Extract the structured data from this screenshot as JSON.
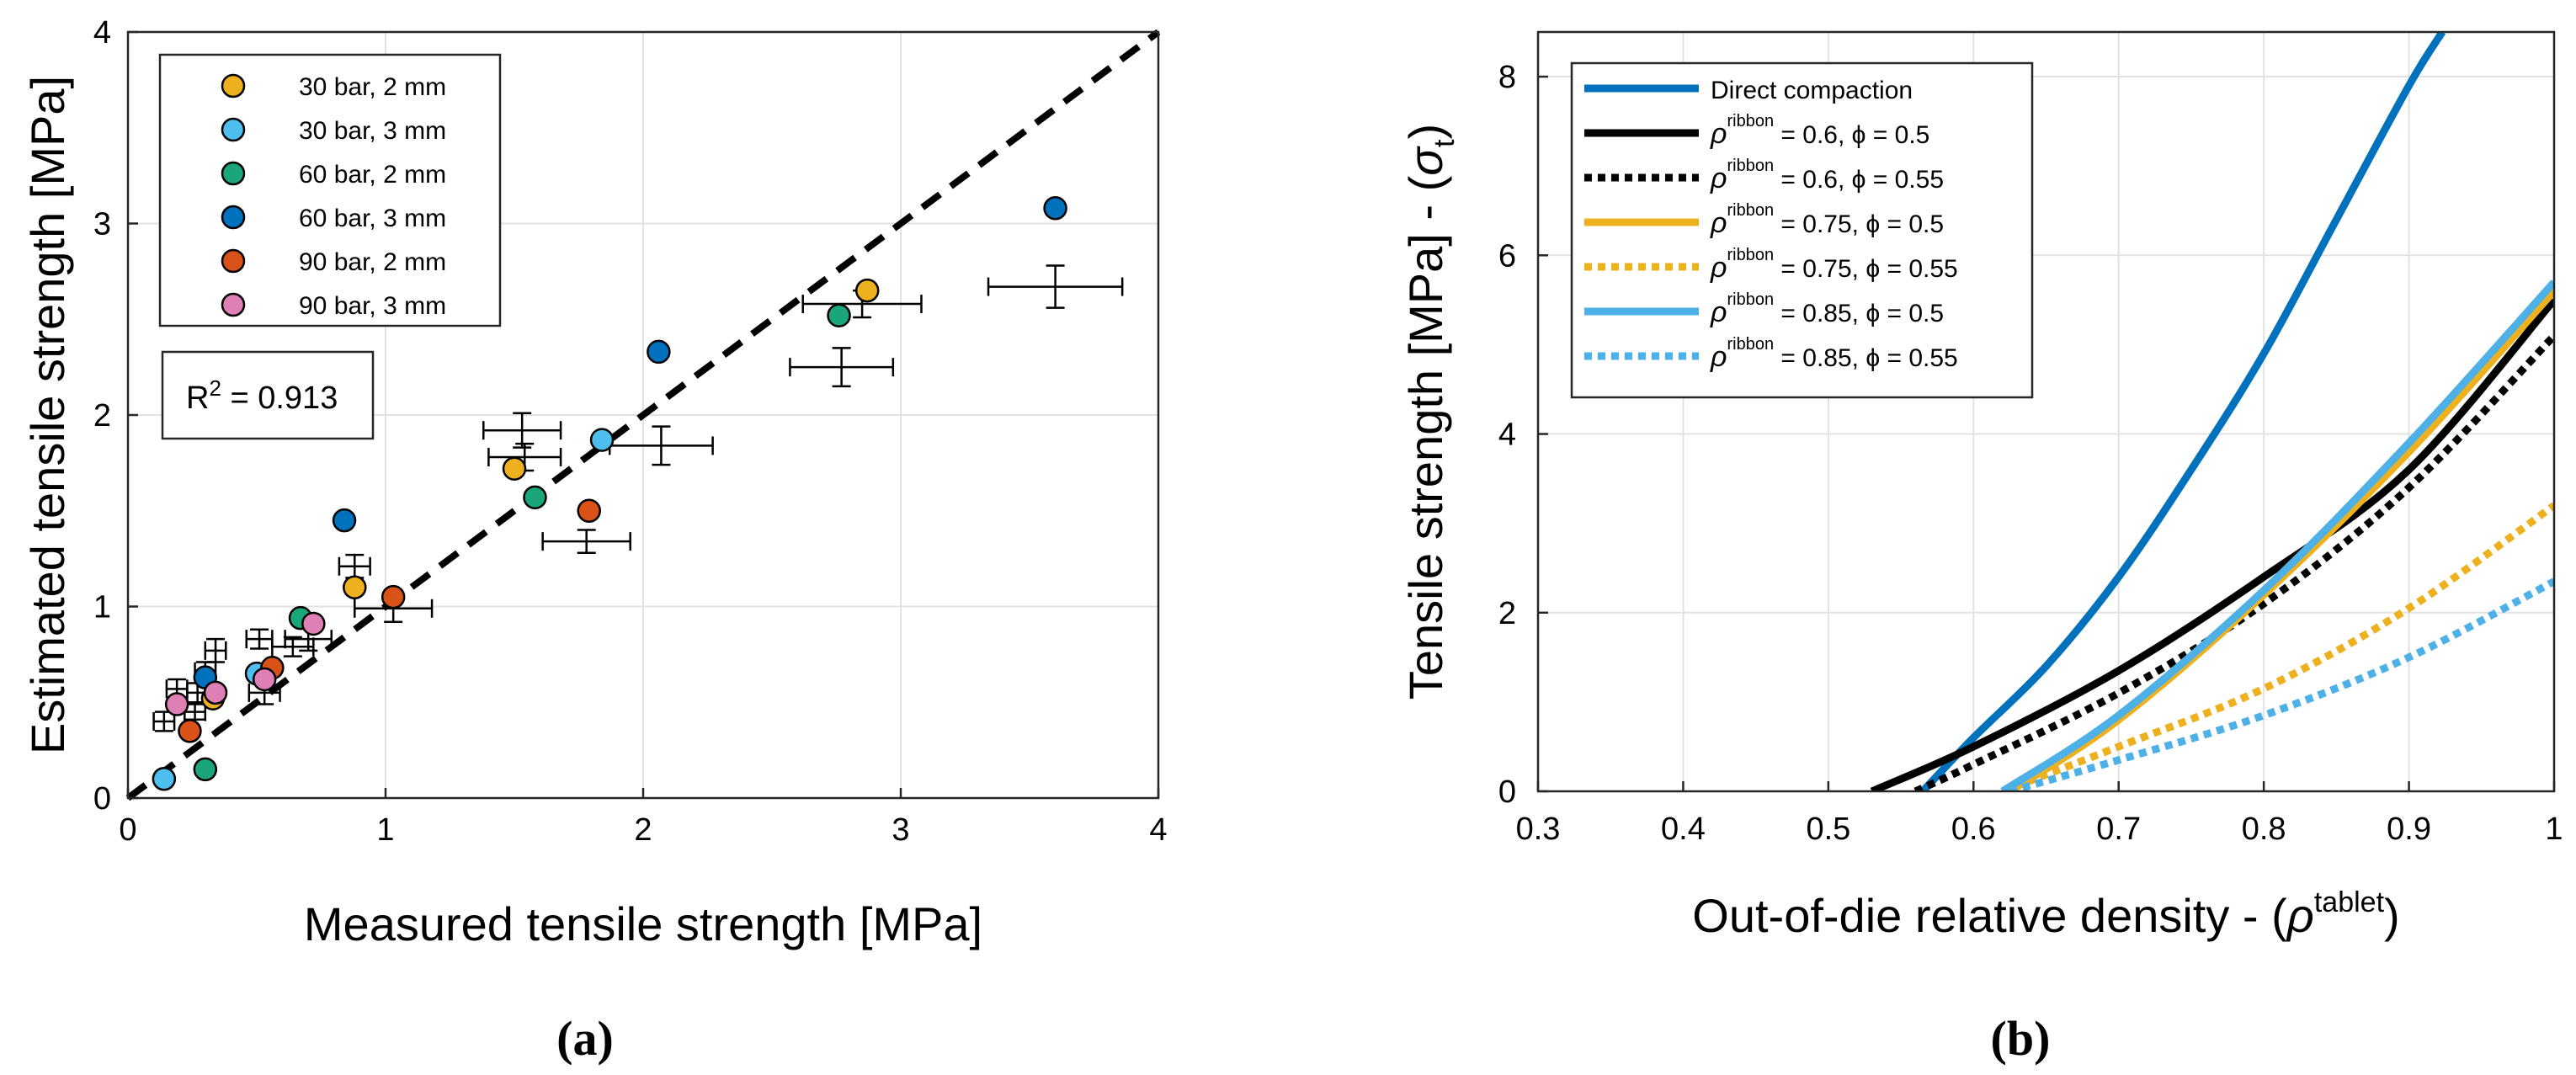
{
  "chart_data": [
    {
      "type": "scatter",
      "title": "",
      "panel_label": "(a)",
      "xlabel": "Measured tensile strength [MPa]",
      "ylabel": "Estimated tensile strength [MPa]",
      "xlim": [
        0,
        4
      ],
      "ylim": [
        0,
        4
      ],
      "xticks": [
        "0",
        "1",
        "2",
        "3",
        "4"
      ],
      "yticks": [
        "0",
        "1",
        "2",
        "3",
        "4"
      ],
      "grid": true,
      "legend_position": "top-left",
      "annotation": {
        "text": "R",
        "sup": "2",
        "suffix": " = 0.913"
      },
      "reference_line": {
        "name": "y = x",
        "style": "dashed",
        "color": "#000000"
      },
      "series": [
        {
          "name": "30 bar, 2 mm",
          "color": "#EDB120",
          "points": [
            [
              0.33,
              0.52
            ],
            [
              0.88,
              1.1
            ],
            [
              1.5,
              1.72
            ],
            [
              2.87,
              2.65
            ]
          ]
        },
        {
          "name": "30 bar, 3 mm",
          "color": "#4DBEEE",
          "points": [
            [
              0.14,
              0.1
            ],
            [
              0.5,
              0.65
            ],
            [
              1.84,
              1.87
            ]
          ]
        },
        {
          "name": "60 bar, 2 mm",
          "color": "#1BA57A",
          "points": [
            [
              0.3,
              0.15
            ],
            [
              0.67,
              0.94
            ],
            [
              1.58,
              1.57
            ],
            [
              2.76,
              2.52
            ]
          ]
        },
        {
          "name": "60 bar, 3 mm",
          "color": "#0072BD",
          "points": [
            [
              0.3,
              0.63
            ],
            [
              0.84,
              1.45
            ],
            [
              2.06,
              2.33
            ],
            [
              3.6,
              3.08
            ]
          ]
        },
        {
          "name": "90 bar, 2 mm",
          "color": "#D95319",
          "points": [
            [
              0.24,
              0.35
            ],
            [
              0.56,
              0.68
            ],
            [
              1.03,
              1.05
            ],
            [
              1.79,
              1.5
            ]
          ]
        },
        {
          "name": "90 bar, 3 mm",
          "color": "#DE7FB5",
          "points": [
            [
              0.19,
              0.49
            ],
            [
              0.34,
              0.55
            ],
            [
              0.53,
              0.62
            ],
            [
              0.72,
              0.91
            ]
          ]
        }
      ],
      "error_bars": [
        {
          "x": 3.6,
          "y": 2.67,
          "xerr": 0.26,
          "yerr": 0.11
        },
        {
          "x": 2.77,
          "y": 2.25,
          "xerr": 0.2,
          "yerr": 0.1
        },
        {
          "x": 2.85,
          "y": 2.58,
          "xerr": 0.23,
          "yerr": 0.07
        },
        {
          "x": 2.07,
          "y": 1.84,
          "xerr": 0.2,
          "yerr": 0.1
        },
        {
          "x": 1.53,
          "y": 1.92,
          "xerr": 0.15,
          "yerr": 0.09
        },
        {
          "x": 1.78,
          "y": 1.34,
          "xerr": 0.17,
          "yerr": 0.06
        },
        {
          "x": 1.54,
          "y": 1.78,
          "xerr": 0.14,
          "yerr": 0.07
        },
        {
          "x": 1.03,
          "y": 0.99,
          "xerr": 0.15,
          "yerr": 0.07
        },
        {
          "x": 0.88,
          "y": 1.21,
          "xerr": 0.06,
          "yerr": 0.06
        },
        {
          "x": 0.7,
          "y": 0.83,
          "xerr": 0.09,
          "yerr": 0.06
        },
        {
          "x": 0.64,
          "y": 0.79,
          "xerr": 0.08,
          "yerr": 0.05
        },
        {
          "x": 0.51,
          "y": 0.83,
          "xerr": 0.05,
          "yerr": 0.05
        },
        {
          "x": 0.34,
          "y": 0.77,
          "xerr": 0.04,
          "yerr": 0.06
        },
        {
          "x": 0.53,
          "y": 0.55,
          "xerr": 0.06,
          "yerr": 0.06
        },
        {
          "x": 0.3,
          "y": 0.66,
          "xerr": 0.04,
          "yerr": 0.05
        },
        {
          "x": 0.27,
          "y": 0.55,
          "xerr": 0.04,
          "yerr": 0.05
        },
        {
          "x": 0.19,
          "y": 0.57,
          "xerr": 0.04,
          "yerr": 0.05
        },
        {
          "x": 0.14,
          "y": 0.4,
          "xerr": 0.04,
          "yerr": 0.05
        },
        {
          "x": 0.26,
          "y": 0.45,
          "xerr": 0.04,
          "yerr": 0.04
        }
      ]
    },
    {
      "type": "line",
      "title": "",
      "panel_label": "(b)",
      "xlabel": "Out-of-die relative density - (",
      "xlabel_symbol": "ρ",
      "xlabel_sup": "tablet",
      "xlabel_end": ")",
      "ylabel": "Tensile  strength [MPa] - (",
      "ylabel_symbol": "σ",
      "ylabel_sub": "t",
      "ylabel_end": ")",
      "xlim": [
        0.3,
        1.0
      ],
      "ylim": [
        0,
        8.5
      ],
      "xticks": [
        "0.3",
        "0.4",
        "0.5",
        "0.6",
        "0.7",
        "0.8",
        "0.9",
        "1"
      ],
      "yticks": [
        "0",
        "2",
        "4",
        "6",
        "8"
      ],
      "grid": true,
      "legend_position": "top-left",
      "series": [
        {
          "name": "Direct compaction",
          "color": "#0072BD",
          "dash": false,
          "x": [
            0.565,
            0.6,
            0.65,
            0.7,
            0.75,
            0.8,
            0.85,
            0.9,
            0.923
          ],
          "y": [
            0,
            0.6,
            1.4,
            2.4,
            3.6,
            4.9,
            6.4,
            7.9,
            8.5
          ]
        },
        {
          "name": "ρ",
          "sup": "ribbon",
          "suffix": " = 0.6, ϕ = 0.5",
          "color": "#000000",
          "dash": false,
          "x": [
            0.53,
            0.6,
            0.7,
            0.8,
            0.9,
            1.0
          ],
          "y": [
            0,
            0.5,
            1.35,
            2.4,
            3.6,
            5.5
          ]
        },
        {
          "name": "ρ",
          "sup": "ribbon",
          "suffix": " = 0.6, ϕ = 0.55",
          "color": "#000000",
          "dash": true,
          "x": [
            0.56,
            0.6,
            0.7,
            0.8,
            0.9,
            1.0
          ],
          "y": [
            0,
            0.3,
            1.1,
            2.1,
            3.4,
            5.1
          ]
        },
        {
          "name": "ρ",
          "sup": "ribbon",
          "suffix": " = 0.75, ϕ = 0.5",
          "color": "#EDB120",
          "dash": false,
          "x": [
            0.625,
            0.7,
            0.8,
            0.9,
            1.0
          ],
          "y": [
            0,
            0.8,
            2.2,
            3.8,
            5.6
          ]
        },
        {
          "name": "ρ",
          "sup": "ribbon",
          "suffix": " = 0.75, ϕ = 0.55",
          "color": "#EDB120",
          "dash": true,
          "x": [
            0.62,
            0.7,
            0.8,
            0.9,
            1.0
          ],
          "y": [
            0,
            0.5,
            1.15,
            2.05,
            3.2
          ]
        },
        {
          "name": "ρ",
          "sup": "ribbon",
          "suffix": " = 0.85, ϕ = 0.5",
          "color": "#4DB0E6",
          "dash": false,
          "x": [
            0.62,
            0.7,
            0.8,
            0.9,
            1.0
          ],
          "y": [
            0,
            0.85,
            2.25,
            3.9,
            5.7
          ]
        },
        {
          "name": "ρ",
          "sup": "ribbon",
          "suffix": " = 0.85, ϕ = 0.55",
          "color": "#4DB0E6",
          "dash": true,
          "x": [
            0.625,
            0.7,
            0.8,
            0.9,
            1.0
          ],
          "y": [
            0,
            0.35,
            0.85,
            1.5,
            2.35
          ]
        }
      ]
    }
  ]
}
